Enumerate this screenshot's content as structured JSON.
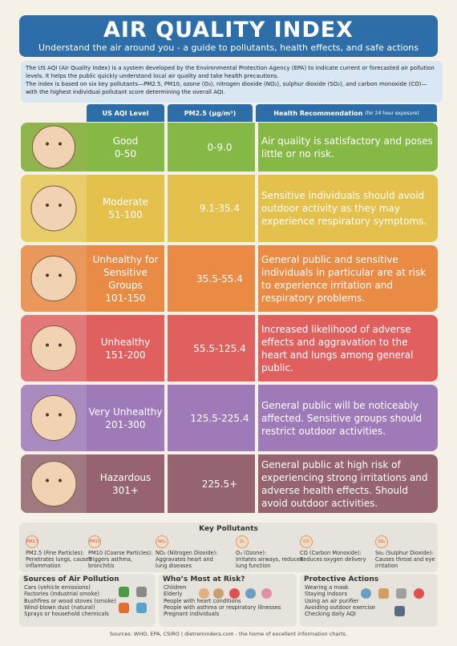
{
  "header": {
    "title": "AIR QUALITY INDEX",
    "subtitle": "Understand the air around you - a guide to pollutants, health effects, and safe actions"
  },
  "intro": {
    "line1": "The US AQI (Air Quality Index) is a system developed by the Environmental Protection Agency (EPA) to indicate current or forecasted air pollution levels. It helps the public quickly understand local air quality and take health precautions.",
    "line2": "The index is based on six key pollutants—PM2.5, PM10, ozone (O₃), nitrogen dioxide (NO₂), sulphur dioxide (SO₂), and carbon monoxide (CO)—with the highest individual pollutant score determining the overall AQI."
  },
  "table": {
    "col_level": "US AQI Level",
    "col_pm": "PM2.5 (μg/m³)",
    "col_rec": "Health Recommendation",
    "col_rec_note": "(for 24 hour exposure)",
    "rows": [
      {
        "name": "Good",
        "range": "0-50",
        "pm": "0-9.0",
        "rec": "Air quality is satisfactory and poses little or no risk.",
        "color": "#86b846",
        "face": "#8fb54c"
      },
      {
        "name": "Moderate",
        "range": "51-100",
        "pm": "9.1-35.4",
        "rec": "Sensitive individuals should avoid outdoor activity as they may experience respiratory symptoms.",
        "color": "#e3c14c",
        "face": "#e9cd6a"
      },
      {
        "name": "Unhealthy for Sensitive Groups",
        "range": "101-150",
        "pm": "35.5-55.4",
        "rec": "General public and sensitive individuals in particular are at risk to experience irritation and respiratory problems.",
        "color": "#e98a45",
        "face": "#ea975c"
      },
      {
        "name": "Unhealthy",
        "range": "151-200",
        "pm": "55.5-125.4",
        "rec": "Increased likelihood of adverse effects and aggravation to the heart and lungs among general public.",
        "color": "#e06060",
        "face": "#e37878"
      },
      {
        "name": "Very Unhealthy",
        "range": "201-300",
        "pm": "125.5-225.4",
        "rec": "General public will be noticeably affected. Sensitive groups should restrict outdoor activities.",
        "color": "#9f7ab8",
        "face": "#a98bc0"
      },
      {
        "name": "Hazardous",
        "range": "301+",
        "pm": "225.5+",
        "rec": "General public at high risk of experiencing strong irritations and adverse health effects. Should avoid outdoor activities.",
        "color": "#956470",
        "face": "#a07880"
      }
    ]
  },
  "pollutants": {
    "title": "Key Pollutants",
    "items": [
      {
        "icon": "PM2.5",
        "name": "PM2.5 (Fine Particles):",
        "desc": "Penetrates lungs, causes inflammation"
      },
      {
        "icon": "PM10",
        "name": "PM10 (Coarse Particles):",
        "desc": "Triggers asthma, bronchitis"
      },
      {
        "icon": "NO₂",
        "name": "NO₂ (Nitrogen Dioxide):",
        "desc": "Aggravates heart and lung diseases"
      },
      {
        "icon": "O₃",
        "name": "O₃ (Ozone):",
        "desc": "Irritates airways, reduces lung function"
      },
      {
        "icon": "CO",
        "name": "CO (Carbon Monoxide):",
        "desc": "Reduces oxygen delivery"
      },
      {
        "icon": "SO₂",
        "name": "So₂ (Sulphur Dioxide):",
        "desc": "Causes throat and eye irritation"
      }
    ]
  },
  "sources": {
    "title": "Sources of Air Pollution",
    "items": [
      "Cars (vehicle emissions)",
      "Factories (industrial smoke)",
      "Bushfires or wood stoves (smoke)",
      "Wind-blown dust (natural)",
      "Sprays or household chemicals"
    ]
  },
  "risk": {
    "title": "Who’s Most at Risk?",
    "items": [
      "Children",
      "Elderly",
      "People with heart conditions",
      "People with asthma or respiratory illnesses",
      "Pregnant individuals"
    ]
  },
  "actions": {
    "title": "Protective Actions",
    "items": [
      "Wearing a mask",
      "Staying indoors",
      "Using an air purifier",
      "Avoiding outdoor exercise",
      "Checking daily AQI"
    ]
  },
  "footer": "Sources: WHO, EPA, CSIRO | dietreminders.com - the home of excellent information charts."
}
